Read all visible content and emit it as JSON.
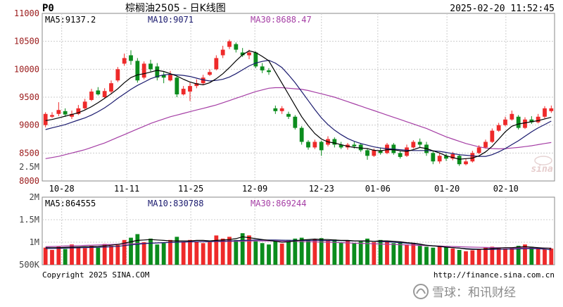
{
  "header": {
    "symbol": "P0",
    "title": "棕榈油2505 - 日K线图",
    "datetime": "2025-02-20 11:52:45"
  },
  "price_ma_labels": {
    "ma5": "MA5:9137.2",
    "ma10": "MA10:9071",
    "ma30": "MA30:8688.47"
  },
  "volume_ma_labels": {
    "ma5": "MA5:864555",
    "ma10": "MA10:830788",
    "ma30": "MA30:869244"
  },
  "footer": {
    "copyright": "Copyright 2025 SINA.COM",
    "url": "http://finance.sina.com.cn"
  },
  "watermark": {
    "logo": "sina",
    "text": "雪球：和讯财经"
  },
  "colors": {
    "up": "#ee2a2a",
    "down": "#0b8c1d",
    "ma5": "#000000",
    "ma10": "#1a1a6e",
    "ma30": "#a53ea5",
    "price_axis": "#9a1a1a",
    "grid": "#cccccc",
    "frame": "#888888"
  },
  "chart_data": [
    {
      "type": "candlestick",
      "ylim": [
        8000,
        11000
      ],
      "y_ticks": [
        "11000",
        "10500",
        "10000",
        "9500",
        "9000",
        "8500",
        "8000"
      ],
      "x_ticks": [
        "10-28",
        "11-11",
        "11-25",
        "12-09",
        "12-23",
        "01-06",
        "01-20",
        "02-10"
      ],
      "candles": [
        [
          9000,
          9200,
          9230,
          8960
        ],
        [
          9150,
          9180,
          9230,
          9130
        ],
        [
          9200,
          9270,
          9410,
          9160
        ],
        [
          9250,
          9190,
          9300,
          9150
        ],
        [
          9150,
          9200,
          9260,
          9110
        ],
        [
          9200,
          9300,
          9360,
          9180
        ],
        [
          9300,
          9420,
          9470,
          9280
        ],
        [
          9450,
          9600,
          9650,
          9430
        ],
        [
          9620,
          9550,
          9680,
          9530
        ],
        [
          9500,
          9610,
          9660,
          9480
        ],
        [
          9600,
          9750,
          9800,
          9570
        ],
        [
          9800,
          10000,
          10040,
          9770
        ],
        [
          10100,
          10200,
          10280,
          10060
        ],
        [
          10250,
          10150,
          10340,
          10080
        ],
        [
          10150,
          9800,
          10200,
          9760
        ],
        [
          9850,
          10100,
          10140,
          9820
        ],
        [
          10100,
          10000,
          10170,
          9960
        ],
        [
          10050,
          9850,
          10110,
          9800
        ],
        [
          9900,
          9850,
          9950,
          9750
        ],
        [
          9800,
          9900,
          9970,
          9780
        ],
        [
          9850,
          9550,
          9880,
          9500
        ],
        [
          9550,
          9650,
          9700,
          9530
        ],
        [
          9600,
          9700,
          9760,
          9430
        ],
        [
          9700,
          9750,
          9820,
          9660
        ],
        [
          9750,
          9850,
          9900,
          9720
        ],
        [
          9900,
          9950,
          10000,
          9880
        ],
        [
          10000,
          10200,
          10250,
          9980
        ],
        [
          10250,
          10350,
          10420,
          10200
        ],
        [
          10400,
          10500,
          10530,
          10360
        ],
        [
          10450,
          10350,
          10480,
          10300
        ],
        [
          10300,
          10250,
          10380,
          10220
        ],
        [
          10250,
          10300,
          10350,
          10180
        ],
        [
          10300,
          10050,
          10320,
          10020
        ],
        [
          10050,
          9980,
          10110,
          9930
        ],
        [
          9980,
          9950,
          10020,
          9900
        ],
        [
          9300,
          9250,
          9350,
          9200
        ],
        [
          9250,
          9300,
          9340,
          9200
        ],
        [
          9200,
          9150,
          9240,
          9110
        ],
        [
          9150,
          8950,
          9180,
          8920
        ],
        [
          8950,
          8700,
          8980,
          8650
        ],
        [
          8700,
          8600,
          8730,
          8560
        ],
        [
          8600,
          8700,
          8740,
          8570
        ],
        [
          8700,
          8550,
          8720,
          8450
        ],
        [
          8650,
          8750,
          8800,
          8620
        ],
        [
          8750,
          8650,
          8780,
          8600
        ],
        [
          8650,
          8600,
          8700,
          8570
        ],
        [
          8600,
          8650,
          8680,
          8560
        ],
        [
          8650,
          8620,
          8700,
          8580
        ],
        [
          8650,
          8550,
          8680,
          8520
        ],
        [
          8550,
          8450,
          8580,
          8380
        ],
        [
          8450,
          8550,
          8580,
          8430
        ],
        [
          8550,
          8500,
          8600,
          8470
        ],
        [
          8500,
          8650,
          8680,
          8480
        ],
        [
          8650,
          8500,
          8680,
          8470
        ],
        [
          8500,
          8430,
          8540,
          8400
        ],
        [
          8450,
          8600,
          8650,
          8430
        ],
        [
          8600,
          8700,
          8730,
          8580
        ],
        [
          8700,
          8650,
          8760,
          8600
        ],
        [
          8650,
          8500,
          8700,
          8450
        ],
        [
          8500,
          8350,
          8540,
          8300
        ],
        [
          8350,
          8450,
          8500,
          8310
        ],
        [
          8450,
          8400,
          8490,
          8360
        ],
        [
          8400,
          8480,
          8520,
          8370
        ],
        [
          8450,
          8300,
          8480,
          8270
        ],
        [
          8300,
          8350,
          8400,
          8280
        ],
        [
          8350,
          8500,
          8540,
          8330
        ],
        [
          8500,
          8600,
          8640,
          8480
        ],
        [
          8600,
          8700,
          8740,
          8580
        ],
        [
          8700,
          8900,
          8940,
          8680
        ],
        [
          8900,
          9000,
          9040,
          8880
        ],
        [
          9000,
          9100,
          9150,
          8980
        ],
        [
          9100,
          9200,
          9260,
          9080
        ],
        [
          9150,
          8950,
          9180,
          8920
        ],
        [
          8950,
          9100,
          9140,
          8930
        ],
        [
          9100,
          9050,
          9160,
          9020
        ],
        [
          9050,
          9150,
          9200,
          9030
        ],
        [
          9150,
          9300,
          9340,
          9120
        ],
        [
          9250,
          9300,
          9350,
          9220
        ]
      ],
      "ma5": [
        9080,
        9100,
        9130,
        9160,
        9190,
        9220,
        9270,
        9330,
        9400,
        9480,
        9560,
        9650,
        9760,
        9850,
        9900,
        9920,
        9950,
        9980,
        9960,
        9920,
        9880,
        9820,
        9770,
        9740,
        9720,
        9760,
        9830,
        9920,
        10030,
        10150,
        10260,
        10330,
        10300,
        10230,
        10150,
        9950,
        9750,
        9550,
        9350,
        9150,
        8990,
        8850,
        8750,
        8700,
        8680,
        8650,
        8620,
        8600,
        8590,
        8580,
        8550,
        8540,
        8560,
        8560,
        8540,
        8530,
        8560,
        8600,
        8580,
        8540,
        8500,
        8450,
        8420,
        8390,
        8400,
        8410,
        8450,
        8520,
        8620,
        8750,
        8880,
        8980,
        9020,
        9040,
        9060,
        9080,
        9110,
        9140
      ],
      "ma10": [
        8920,
        8950,
        8980,
        9010,
        9050,
        9090,
        9130,
        9180,
        9240,
        9310,
        9390,
        9480,
        9560,
        9640,
        9710,
        9770,
        9830,
        9870,
        9900,
        9910,
        9900,
        9890,
        9870,
        9840,
        9810,
        9790,
        9800,
        9820,
        9860,
        9920,
        9990,
        10060,
        10110,
        10140,
        10160,
        10110,
        10030,
        9900,
        9760,
        9600,
        9440,
        9280,
        9130,
        9010,
        8910,
        8830,
        8760,
        8710,
        8670,
        8640,
        8610,
        8590,
        8580,
        8570,
        8560,
        8550,
        8545,
        8545,
        8545,
        8540,
        8530,
        8510,
        8490,
        8470,
        8460,
        8450,
        8440,
        8440,
        8470,
        8520,
        8580,
        8650,
        8720,
        8800,
        8880,
        8950,
        9010,
        9071
      ],
      "ma30": [
        8400,
        8420,
        8440,
        8470,
        8500,
        8530,
        8560,
        8600,
        8640,
        8680,
        8730,
        8780,
        8830,
        8880,
        8930,
        8980,
        9030,
        9070,
        9110,
        9150,
        9180,
        9210,
        9240,
        9270,
        9300,
        9330,
        9360,
        9400,
        9440,
        9480,
        9520,
        9560,
        9600,
        9630,
        9660,
        9670,
        9670,
        9660,
        9650,
        9640,
        9620,
        9590,
        9560,
        9530,
        9500,
        9460,
        9420,
        9380,
        9340,
        9300,
        9260,
        9220,
        9180,
        9140,
        9100,
        9060,
        9020,
        8980,
        8940,
        8890,
        8840,
        8790,
        8750,
        8710,
        8670,
        8640,
        8610,
        8590,
        8580,
        8575,
        8580,
        8590,
        8600,
        8615,
        8630,
        8650,
        8670,
        8688
      ]
    },
    {
      "type": "bar",
      "name": "volume",
      "ylim": [
        500000,
        2000000
      ],
      "y_ticks": [
        "2M",
        "1.5M",
        "1M",
        "500K"
      ],
      "values": [
        880000,
        830000,
        900000,
        850000,
        950000,
        900000,
        870000,
        920000,
        880000,
        960000,
        920000,
        940000,
        1050000,
        1100000,
        1180000,
        1000000,
        1080000,
        950000,
        980000,
        1050000,
        1120000,
        1000000,
        1050000,
        1020000,
        980000,
        1000000,
        1150000,
        1080000,
        1120000,
        1050000,
        1200000,
        1150000,
        1020000,
        980000,
        950000,
        1020000,
        970000,
        1050000,
        1080000,
        1100000,
        1050000,
        1070000,
        1090000,
        1030000,
        1060000,
        1000000,
        1040000,
        980000,
        1020000,
        1080000,
        1000000,
        1050000,
        1020000,
        980000,
        1000000,
        950000,
        980000,
        920000,
        900000,
        880000,
        920000,
        900000,
        860000,
        830000,
        800000,
        820000,
        850000,
        880000,
        900000,
        870000,
        860000,
        880000,
        920000,
        950000,
        900000,
        870000,
        850000,
        860000
      ],
      "ma5": [
        880000,
        878000,
        880000,
        885000,
        890000,
        895000,
        900000,
        905000,
        910000,
        920000,
        935000,
        950000,
        980000,
        1010000,
        1040000,
        1050000,
        1060000,
        1050000,
        1040000,
        1030000,
        1030000,
        1030000,
        1030000,
        1040000,
        1040000,
        1030000,
        1040000,
        1050000,
        1060000,
        1080000,
        1120000,
        1100000,
        1080000,
        1060000,
        1040000,
        1020000,
        1000000,
        1010000,
        1030000,
        1050000,
        1060000,
        1070000,
        1060000,
        1060000,
        1050000,
        1040000,
        1040000,
        1030000,
        1030000,
        1030000,
        1020000,
        1030000,
        1030000,
        1020000,
        1010000,
        990000,
        980000,
        960000,
        930000,
        920000,
        910000,
        890000,
        880000,
        870000,
        850000,
        840000,
        840000,
        850000,
        860000,
        870000,
        880000,
        880000,
        890000,
        900000,
        890000,
        880000,
        870000,
        864555
      ],
      "ma10": [
        860000,
        862000,
        865000,
        868000,
        872000,
        876000,
        880000,
        884000,
        888000,
        892000,
        900000,
        910000,
        925000,
        940000,
        955000,
        968000,
        978000,
        985000,
        990000,
        995000,
        1000000,
        1005000,
        1010000,
        1012000,
        1014000,
        1016000,
        1020000,
        1025000,
        1030000,
        1035000,
        1040000,
        1045000,
        1048000,
        1050000,
        1050000,
        1048000,
        1046000,
        1044000,
        1042000,
        1040000,
        1040000,
        1040000,
        1040000,
        1038000,
        1036000,
        1034000,
        1032000,
        1030000,
        1028000,
        1024000,
        1020000,
        1015000,
        1008000,
        1000000,
        990000,
        978000,
        965000,
        950000,
        935000,
        920000,
        905000,
        892000,
        880000,
        868000,
        858000,
        850000,
        845000,
        842000,
        842000,
        843000,
        845000,
        848000,
        852000,
        856000,
        858000,
        858000,
        845000,
        830788
      ],
      "ma30": [
        900000,
        905000,
        910000,
        915000,
        920000,
        925000,
        930000,
        935000,
        940000,
        945000,
        950000,
        955000,
        960000,
        965000,
        970000,
        975000,
        980000,
        985000,
        990000,
        995000,
        1000000,
        1005000,
        1008000,
        1010000,
        1012000,
        1014000,
        1016000,
        1018000,
        1020000,
        1022000,
        1024000,
        1026000,
        1028000,
        1030000,
        1030000,
        1028000,
        1026000,
        1024000,
        1020000,
        1016000,
        1012000,
        1008000,
        1004000,
        1000000,
        995000,
        990000,
        985000,
        980000,
        975000,
        970000,
        965000,
        960000,
        955000,
        950000,
        945000,
        940000,
        935000,
        930000,
        925000,
        920000,
        915000,
        910000,
        905000,
        900000,
        895000,
        890000,
        887000,
        884000,
        881000,
        878000,
        876000,
        874000,
        873000,
        872000,
        871000,
        870000,
        869500,
        869244
      ]
    }
  ]
}
